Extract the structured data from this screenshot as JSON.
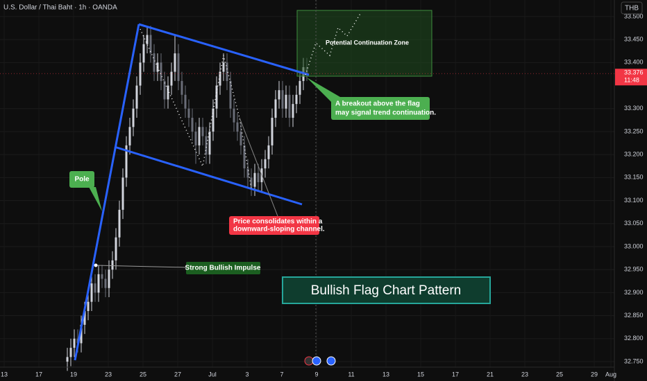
{
  "header": {
    "title": "U.S. Dollar / Thai Baht · 1h · OANDA",
    "currency": "THB"
  },
  "chart_data": {
    "type": "candlestick",
    "open": [
      32.75,
      32.76,
      32.78,
      32.8,
      32.79,
      32.83,
      32.86,
      32.88,
      32.92,
      32.9,
      32.94,
      32.93,
      32.91,
      32.95,
      32.97,
      33.02,
      33.08,
      33.15,
      33.22,
      33.26,
      33.3,
      33.35,
      33.4,
      33.44,
      33.46,
      33.42,
      33.38,
      33.4,
      33.36,
      33.32,
      33.35,
      33.38,
      33.42,
      33.36,
      33.33,
      33.3,
      33.28,
      33.25,
      33.22,
      33.26,
      33.24,
      33.2,
      33.25,
      33.3,
      33.35,
      33.38,
      33.4,
      33.36,
      33.3,
      33.27,
      33.25,
      33.22,
      33.17,
      33.15,
      33.13,
      33.16,
      33.14,
      33.17,
      33.19,
      33.22,
      33.28,
      33.32,
      33.34,
      33.3,
      33.33,
      33.28,
      33.31,
      33.33,
      33.36,
      33.39
    ],
    "high": [
      32.78,
      32.8,
      32.82,
      32.82,
      32.85,
      32.88,
      32.9,
      32.94,
      32.94,
      32.96,
      32.96,
      32.95,
      32.97,
      32.99,
      33.04,
      33.1,
      33.17,
      33.24,
      33.28,
      33.32,
      33.37,
      33.42,
      33.46,
      33.48,
      33.48,
      33.44,
      33.42,
      33.42,
      33.38,
      33.37,
      33.4,
      33.46,
      33.44,
      33.38,
      33.35,
      33.32,
      33.3,
      33.27,
      33.28,
      33.28,
      33.26,
      33.27,
      33.32,
      33.37,
      33.4,
      33.42,
      33.42,
      33.38,
      33.32,
      33.29,
      33.27,
      33.24,
      33.19,
      33.17,
      33.18,
      33.18,
      33.19,
      33.21,
      33.24,
      33.3,
      33.34,
      33.36,
      33.36,
      33.35,
      33.35,
      33.33,
      33.35,
      33.38,
      33.41,
      33.41
    ],
    "low": [
      32.73,
      32.74,
      32.76,
      32.77,
      32.77,
      32.81,
      32.84,
      32.86,
      32.88,
      32.88,
      32.91,
      32.89,
      32.89,
      32.93,
      32.95,
      33.0,
      33.06,
      33.13,
      33.2,
      33.24,
      33.28,
      33.33,
      33.38,
      33.42,
      33.4,
      33.36,
      33.36,
      33.34,
      33.3,
      33.3,
      33.33,
      33.36,
      33.34,
      33.31,
      33.28,
      33.26,
      33.23,
      33.18,
      33.2,
      33.22,
      33.18,
      33.18,
      33.23,
      33.28,
      33.33,
      33.36,
      33.34,
      33.28,
      33.25,
      33.23,
      33.2,
      33.15,
      33.13,
      33.11,
      33.11,
      33.12,
      33.12,
      33.15,
      33.17,
      33.2,
      33.26,
      33.3,
      33.28,
      33.28,
      33.26,
      33.26,
      33.29,
      33.31,
      33.34,
      33.36
    ],
    "close": [
      32.76,
      32.78,
      32.8,
      32.79,
      32.83,
      32.86,
      32.88,
      32.92,
      32.9,
      32.94,
      32.93,
      32.91,
      32.95,
      32.97,
      33.02,
      33.08,
      33.15,
      33.22,
      33.26,
      33.3,
      33.35,
      33.4,
      33.44,
      33.46,
      33.42,
      33.38,
      33.4,
      33.36,
      33.32,
      33.35,
      33.38,
      33.42,
      33.36,
      33.33,
      33.3,
      33.28,
      33.25,
      33.22,
      33.26,
      33.24,
      33.2,
      33.25,
      33.3,
      33.35,
      33.38,
      33.4,
      33.36,
      33.3,
      33.27,
      33.25,
      33.22,
      33.17,
      33.15,
      33.13,
      33.16,
      33.14,
      33.17,
      33.19,
      33.22,
      33.28,
      33.32,
      33.34,
      33.3,
      33.33,
      33.28,
      33.31,
      33.33,
      33.36,
      33.39,
      33.376
    ],
    "up_color": "#d1d4dc",
    "down_color": "#6a6d78",
    "ylim": [
      32.738,
      33.536
    ],
    "yticks": [
      {
        "value": 33.5,
        "label": "33.500"
      },
      {
        "value": 33.45,
        "label": "33.450"
      },
      {
        "value": 33.4,
        "label": "33.400"
      },
      {
        "value": 33.3,
        "label": "33.300"
      },
      {
        "value": 33.25,
        "label": "33.250"
      },
      {
        "value": 33.2,
        "label": "33.200"
      },
      {
        "value": 33.15,
        "label": "33.150"
      },
      {
        "value": 33.1,
        "label": "33.100"
      },
      {
        "value": 33.05,
        "label": "33.050"
      },
      {
        "value": 33,
        "label": "33.000"
      },
      {
        "value": 32.95,
        "label": "32.950"
      },
      {
        "value": 32.9,
        "label": "32.900"
      },
      {
        "value": 32.85,
        "label": "32.850"
      },
      {
        "value": 32.8,
        "label": "32.800"
      },
      {
        "value": 32.75,
        "label": "32.750"
      }
    ],
    "xtick_labels": [
      "13",
      "17",
      "19",
      "23",
      "25",
      "27",
      "Jul",
      "3",
      "7",
      "9",
      "11",
      "13",
      "15",
      "17",
      "21",
      "23",
      "25",
      "29",
      "Aug"
    ],
    "grid": true,
    "last_price": 33.376,
    "countdown": "11:48",
    "last_price_color": "#f23645"
  },
  "annotations": {
    "pole": "Pole",
    "breakout": [
      "A breakout above the flag",
      "may signal trend continuation."
    ],
    "consolidation": [
      "Price consolidates within a",
      "downward-sloping channel."
    ],
    "impulse": "Strong Bullish Impulse",
    "zone": "Potential Continuation Zone",
    "pattern": "Bullish Flag Chart Pattern"
  }
}
